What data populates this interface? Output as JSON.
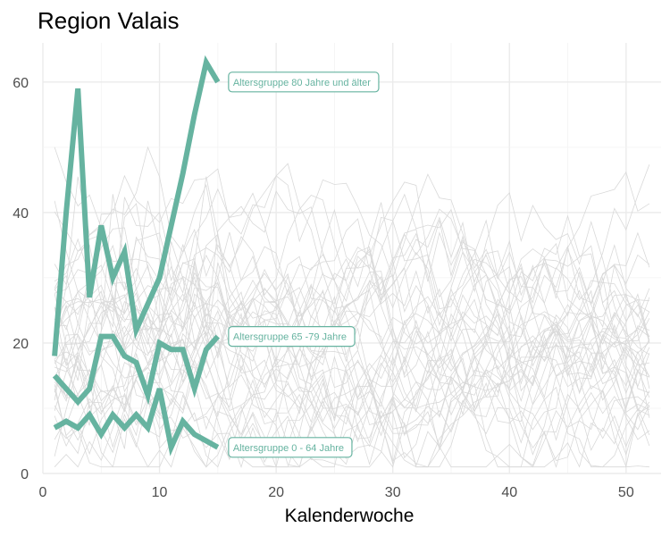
{
  "chart_data": {
    "type": "line",
    "title": "Region Valais",
    "xlabel": "Kalenderwoche",
    "ylabel": "",
    "xlim": [
      0,
      53
    ],
    "ylim": [
      0,
      66
    ],
    "x_ticks": [
      0,
      10,
      20,
      30,
      40,
      50
    ],
    "y_ticks": [
      0,
      20,
      40,
      60
    ],
    "grid": true,
    "highlight_color": "#66b3a0",
    "background_line_color": "#d9d9d9",
    "series": [
      {
        "name": "Altersgruppe 80 Jahre und älter",
        "x": [
          1,
          2,
          3,
          4,
          5,
          6,
          7,
          8,
          10,
          12,
          13,
          14,
          15
        ],
        "values": [
          18,
          40,
          59,
          27,
          38,
          30,
          34,
          22,
          30,
          46,
          55,
          63,
          60
        ]
      },
      {
        "name": "Altersgruppe 65 -79 Jahre",
        "x": [
          1,
          2,
          3,
          4,
          5,
          6,
          7,
          8,
          9,
          10,
          11,
          12,
          13,
          14,
          15
        ],
        "values": [
          15,
          13,
          11,
          13,
          21,
          21,
          18,
          17,
          12,
          20,
          19,
          19,
          13,
          19,
          21
        ]
      },
      {
        "name": "Altersgruppe 0 - 64 Jahre",
        "x": [
          1,
          2,
          3,
          4,
          5,
          6,
          7,
          8,
          9,
          10,
          11,
          12,
          13,
          14,
          15
        ],
        "values": [
          7,
          8,
          7,
          9,
          6,
          9,
          7,
          9,
          7,
          13,
          4,
          8,
          6,
          5,
          4
        ]
      }
    ]
  }
}
